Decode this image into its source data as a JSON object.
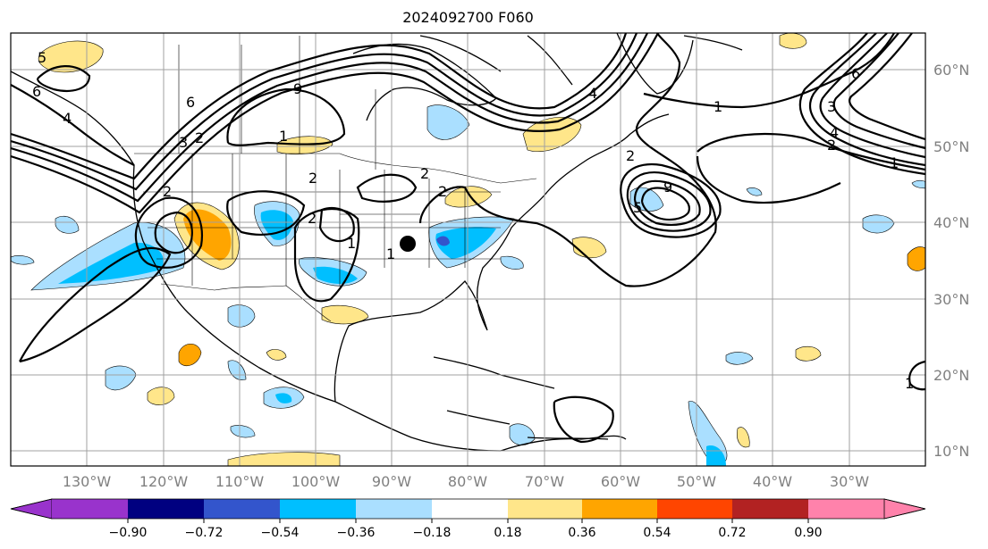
{
  "title": "2024092700 F060",
  "map": {
    "lat_labels": [
      "60°N",
      "50°N",
      "40°N",
      "30°N",
      "20°N",
      "10°N"
    ],
    "lon_labels": [
      "130°W",
      "120°W",
      "110°W",
      "100°W",
      "90°W",
      "80°W",
      "70°W",
      "60°W",
      "50°W",
      "40°W",
      "30°W"
    ],
    "contour_labels": [
      "5",
      "6",
      "4",
      "6",
      "3",
      "2",
      "1",
      "9",
      "2",
      "2",
      "2",
      "1",
      "1",
      "4",
      "5",
      "1",
      "6",
      "3",
      "4",
      "2",
      "1",
      "2",
      "2",
      "2",
      "9",
      "1"
    ]
  },
  "colorbar": {
    "ticks": [
      "−0.90",
      "−0.72",
      "−0.54",
      "−0.36",
      "−0.18",
      "0.18",
      "0.36",
      "0.54",
      "0.72",
      "0.90"
    ],
    "colors": [
      "#9933cc",
      "#000080",
      "#3355cc",
      "#00bfff",
      "#aadfff",
      "#ffffff",
      "#ffe68a",
      "#ffa500",
      "#ff4500",
      "#b22222",
      "#ff82ab"
    ]
  },
  "marker": {
    "color": "#000000"
  }
}
